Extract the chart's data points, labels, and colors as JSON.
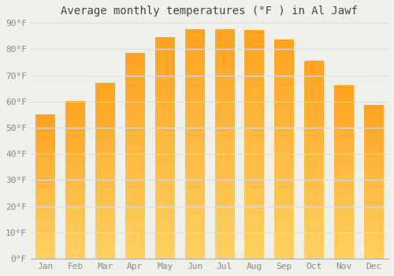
{
  "title": "Average monthly temperatures (°F ) in Al Jawf",
  "months": [
    "Jan",
    "Feb",
    "Mar",
    "Apr",
    "May",
    "Jun",
    "Jul",
    "Aug",
    "Sep",
    "Oct",
    "Nov",
    "Dec"
  ],
  "values": [
    55,
    60,
    67,
    78.5,
    84.5,
    87.5,
    87.5,
    87,
    83.5,
    75.5,
    66,
    58.5
  ],
  "bar_color_bottom": "#FFD060",
  "bar_color_top": "#FFA020",
  "ylim": [
    0,
    90
  ],
  "yticks": [
    0,
    10,
    20,
    30,
    40,
    50,
    60,
    70,
    80,
    90
  ],
  "ytick_labels": [
    "0°F",
    "10°F",
    "20°F",
    "30°F",
    "40°F",
    "50°F",
    "60°F",
    "70°F",
    "80°F",
    "90°F"
  ],
  "background_color": "#f0f0eb",
  "grid_color": "#dddddd",
  "title_fontsize": 10,
  "tick_fontsize": 8,
  "font_family": "monospace",
  "bar_width": 0.65
}
